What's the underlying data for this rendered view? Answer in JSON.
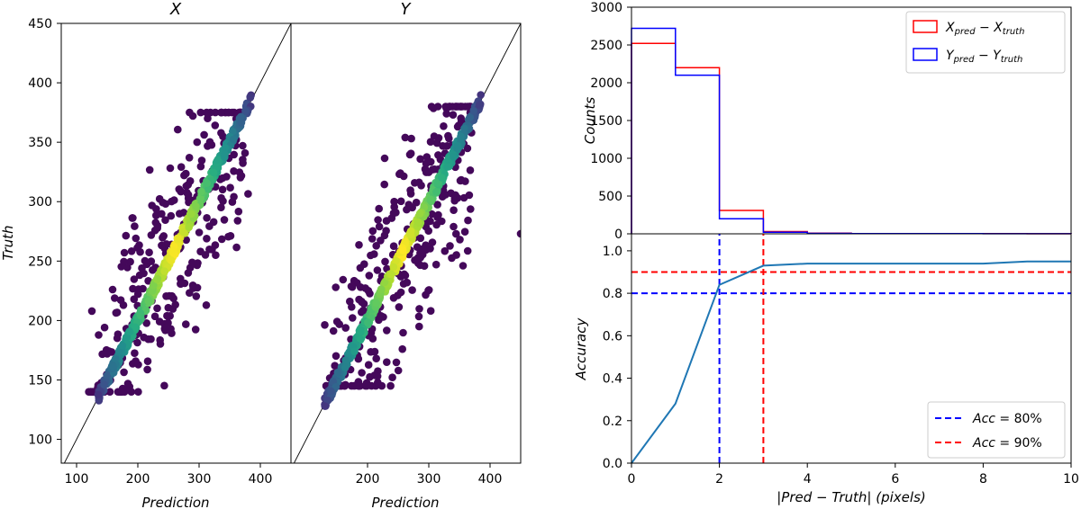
{
  "chart_data": [
    {
      "type": "scatter",
      "title": "X",
      "xlabel": "Prediction",
      "ylabel": "Truth",
      "xlim": [
        75,
        450
      ],
      "ylim": [
        80,
        450
      ],
      "xticks": [
        100,
        200,
        300,
        400
      ],
      "yticks": [
        100,
        150,
        200,
        250,
        300,
        350,
        400,
        450
      ],
      "colormap": "viridis",
      "density_band": {
        "from": 135,
        "to": 385
      },
      "outlier_range": {
        "x": [
          120,
          380
        ],
        "y": [
          140,
          375
        ]
      },
      "outlier_count": 320,
      "reference_line": "y=x",
      "grid": false,
      "share_y_with_right": true
    },
    {
      "type": "scatter",
      "title": "Y",
      "xlabel": "Prediction",
      "ylabel": "",
      "xlim": [
        75,
        450
      ],
      "ylim": [
        80,
        450
      ],
      "xticks": [
        200,
        300,
        400
      ],
      "colormap": "viridis",
      "density_band": {
        "from": 130,
        "to": 385
      },
      "outlier_range": {
        "x": [
          130,
          370
        ],
        "y": [
          145,
          380
        ]
      },
      "outlier_count": 320,
      "extra_points": [
        {
          "x": 450,
          "y": 273
        }
      ],
      "reference_line": "y=x",
      "grid": false
    },
    {
      "type": "histogram",
      "title": "",
      "xlabel": "",
      "ylabel": "Counts",
      "xlim": [
        0,
        10
      ],
      "ylim": [
        0,
        3000
      ],
      "yticks": [
        0,
        500,
        1000,
        1500,
        2000,
        2500,
        3000
      ],
      "bins": [
        0,
        1,
        2,
        3,
        4,
        5,
        6,
        7,
        8,
        9,
        10
      ],
      "series": [
        {
          "name": "X_pred − X_truth",
          "main": "X",
          "sub1": "pred",
          "mid": " − X",
          "sub2": "truth",
          "color": "#ff0000",
          "values": [
            2520,
            2200,
            310,
            30,
            8,
            4,
            3,
            2,
            2,
            1
          ]
        },
        {
          "name": "Y_pred − Y_truth",
          "main": "Y",
          "sub1": "pred",
          "mid": " − Y",
          "sub2": "truth",
          "color": "#0000ff",
          "values": [
            2720,
            2100,
            200,
            20,
            6,
            3,
            2,
            2,
            1,
            1
          ]
        }
      ],
      "legend": "top-right",
      "grid": false
    },
    {
      "type": "line",
      "title": "",
      "xlabel": "|Pred − Truth| (pixels)",
      "ylabel": "Accuracy",
      "xlim": [
        0,
        10
      ],
      "ylim": [
        0,
        1.08
      ],
      "xticks": [
        0,
        2,
        4,
        6,
        8,
        10
      ],
      "yticks": [
        0.0,
        0.2,
        0.4,
        0.6,
        0.8,
        1.0
      ],
      "series": [
        {
          "name": "",
          "color": "#1f77b4",
          "x": [
            0,
            1,
            2,
            3,
            4,
            5,
            6,
            7,
            8,
            9,
            10
          ],
          "y": [
            0.0,
            0.28,
            0.84,
            0.93,
            0.94,
            0.94,
            0.94,
            0.94,
            0.94,
            0.95,
            0.95
          ]
        }
      ],
      "reference_lines": [
        {
          "name": "Acc = 80%",
          "label_main": "Acc",
          "label_rest": " = 80%",
          "color": "#0000ff",
          "h": 0.8,
          "v": 2
        },
        {
          "name": "Acc = 90%",
          "label_main": "Acc",
          "label_rest": " = 90%",
          "color": "#ff0000",
          "h": 0.9,
          "v": 3
        }
      ],
      "legend": "bottom-right",
      "grid": false
    }
  ]
}
